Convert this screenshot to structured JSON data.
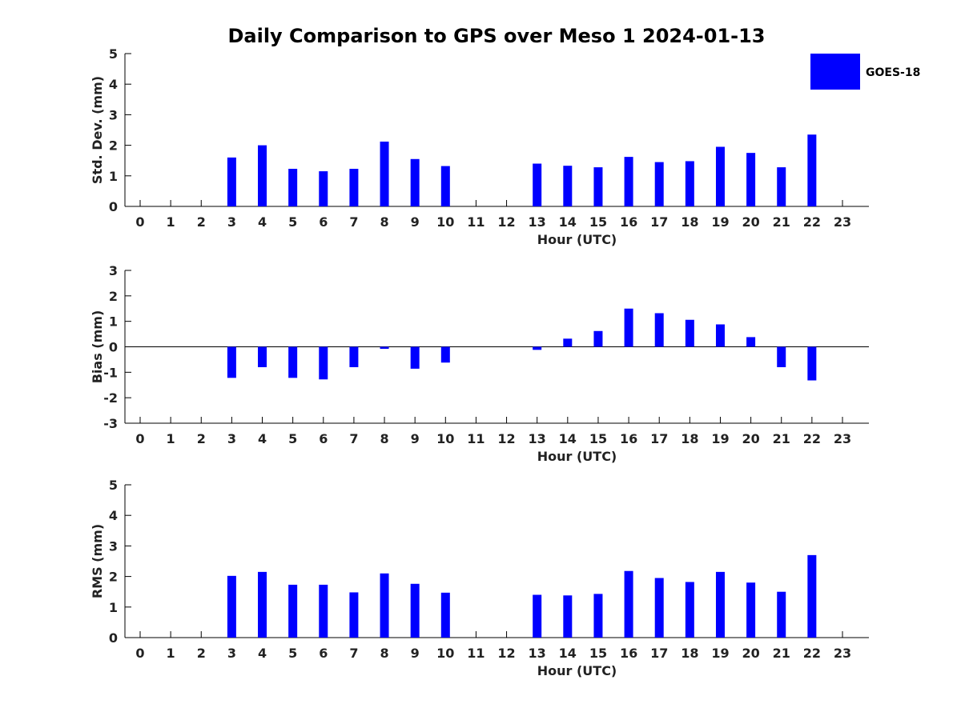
{
  "title": "Daily Comparison to GPS over Meso 1 2024-01-13",
  "legend": {
    "label": "GOES-18",
    "placement": "top-right"
  },
  "colors": {
    "bar": "#0000ff",
    "axis": "#000000"
  },
  "chart_data": [
    {
      "type": "bar",
      "xlabel": "Hour (UTC)",
      "ylabel": "Std. Dev. (mm)",
      "ylim": [
        0,
        5
      ],
      "yticks": [
        0,
        1,
        2,
        3,
        4,
        5
      ],
      "categories": [
        "0",
        "1",
        "2",
        "3",
        "4",
        "5",
        "6",
        "7",
        "8",
        "9",
        "10",
        "11",
        "12",
        "13",
        "14",
        "15",
        "16",
        "17",
        "18",
        "19",
        "20",
        "21",
        "22",
        "23"
      ],
      "series": [
        {
          "name": "GOES-18",
          "values": [
            null,
            null,
            null,
            1.6,
            2.0,
            1.23,
            1.15,
            1.23,
            2.12,
            1.55,
            1.32,
            null,
            null,
            1.4,
            1.33,
            1.28,
            1.62,
            1.45,
            1.48,
            1.95,
            1.75,
            1.28,
            2.35,
            null
          ]
        }
      ],
      "grid": false
    },
    {
      "type": "bar",
      "xlabel": "Hour (UTC)",
      "ylabel": "Bias (mm)",
      "ylim": [
        -3,
        3
      ],
      "yticks": [
        -3,
        -2,
        -1,
        0,
        1,
        2,
        3
      ],
      "zero_line": true,
      "categories": [
        "0",
        "1",
        "2",
        "3",
        "4",
        "5",
        "6",
        "7",
        "8",
        "9",
        "10",
        "11",
        "12",
        "13",
        "14",
        "15",
        "16",
        "17",
        "18",
        "19",
        "20",
        "21",
        "22",
        "23"
      ],
      "series": [
        {
          "name": "GOES-18",
          "values": [
            null,
            null,
            null,
            -1.22,
            -0.8,
            -1.22,
            -1.28,
            -0.8,
            -0.08,
            -0.86,
            -0.62,
            null,
            null,
            -0.12,
            0.32,
            0.62,
            1.5,
            1.32,
            1.06,
            0.88,
            0.38,
            -0.8,
            -1.32,
            null
          ]
        }
      ],
      "grid": false
    },
    {
      "type": "bar",
      "xlabel": "Hour (UTC)",
      "ylabel": "RMS (mm)",
      "ylim": [
        0,
        5
      ],
      "yticks": [
        0,
        1,
        2,
        3,
        4,
        5
      ],
      "categories": [
        "0",
        "1",
        "2",
        "3",
        "4",
        "5",
        "6",
        "7",
        "8",
        "9",
        "10",
        "11",
        "12",
        "13",
        "14",
        "15",
        "16",
        "17",
        "18",
        "19",
        "20",
        "21",
        "22",
        "23"
      ],
      "series": [
        {
          "name": "GOES-18",
          "values": [
            null,
            null,
            null,
            2.02,
            2.15,
            1.73,
            1.73,
            1.48,
            2.1,
            1.76,
            1.47,
            null,
            null,
            1.4,
            1.38,
            1.43,
            2.18,
            1.95,
            1.82,
            2.15,
            1.8,
            1.5,
            2.7,
            null
          ]
        }
      ],
      "grid": false
    }
  ]
}
